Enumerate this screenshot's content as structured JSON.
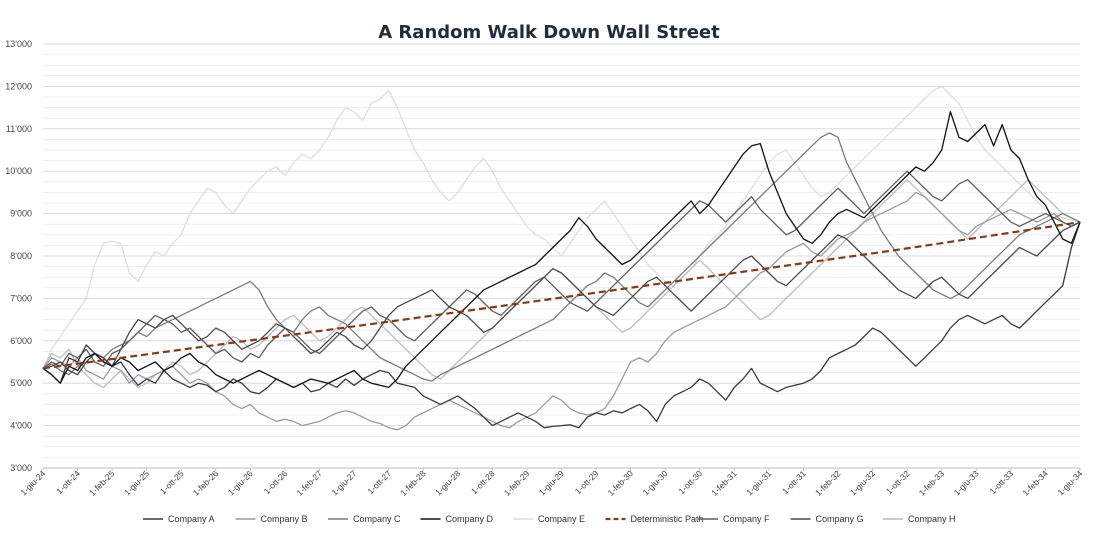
{
  "chart_data": {
    "type": "line",
    "title": "A Random Walk Down Wall Street",
    "xlabel": "",
    "ylabel": "",
    "ylim": [
      3000,
      13000
    ],
    "y_ticks": [
      {
        "value": 3000,
        "label": "3'000"
      },
      {
        "value": 4000,
        "label": "4'000"
      },
      {
        "value": 5000,
        "label": "5'000"
      },
      {
        "value": 6000,
        "label": "6'000"
      },
      {
        "value": 7000,
        "label": "7'000"
      },
      {
        "value": 8000,
        "label": "8'000"
      },
      {
        "value": 9000,
        "label": "9'000"
      },
      {
        "value": 10000,
        "label": "10'000"
      },
      {
        "value": 11000,
        "label": "11'000"
      },
      {
        "value": 12000,
        "label": "12'000"
      },
      {
        "value": 13000,
        "label": "13'000"
      }
    ],
    "grid": true,
    "legend_position": "bottom",
    "x_start": "1-giu-24",
    "x_end": "1-giu-34",
    "x_ticks": [
      "1-giu-24",
      "1-ott-24",
      "1-feb-25",
      "1-giu-25",
      "1-ott-25",
      "1-feb-26",
      "1-giu-26",
      "1-ott-26",
      "1-feb-27",
      "1-giu-27",
      "1-ott-27",
      "1-feb-28",
      "1-giu-28",
      "1-ott-28",
      "1-feb-29",
      "1-giu-29",
      "1-ott-29",
      "1-feb-30",
      "1-giu-30",
      "1-ott-30",
      "1-feb-31",
      "1-giu-31",
      "1-ott-31",
      "1-feb-32",
      "1-giu-32",
      "1-ott-32",
      "1-feb-33",
      "1-giu-33",
      "1-ott-33",
      "1-feb-34",
      "1-giu-34"
    ],
    "series": [
      {
        "name": "Company A",
        "color": "#3a3a3a",
        "dash": false,
        "values": [
          5350,
          5200,
          5000,
          5600,
          5500,
          5900,
          5700,
          5600,
          5400,
          5500,
          5200,
          4950,
          5100,
          5000,
          5300,
          5100,
          5000,
          4900,
          5000,
          4950,
          4800,
          4900,
          5100,
          5000,
          4800,
          4750,
          4900,
          5100,
          5000,
          4900,
          5000,
          4800,
          4850,
          5000,
          4900,
          5100,
          4950,
          5100,
          5200,
          5300,
          5250,
          5000,
          4950,
          4900,
          4700,
          4600,
          4500,
          4600,
          4700,
          4550,
          4400,
          4200,
          4000,
          4100,
          4200,
          4300,
          4200,
          4100,
          3950,
          3980,
          4000,
          4020,
          3950,
          4200,
          4300,
          4250,
          4350,
          4300,
          4400,
          4500,
          4350,
          4100,
          4500,
          4700,
          4800,
          4900,
          5100,
          5000,
          4800,
          4600,
          4900,
          5100,
          5350,
          5000,
          4900,
          4800,
          4900,
          4950,
          5000,
          5100,
          5300,
          5600,
          5700,
          5800,
          5900,
          6100,
          6300,
          6200,
          6000,
          5800,
          5600,
          5400,
          5600,
          5800,
          6000,
          6300,
          6500,
          6600,
          6500,
          6400,
          6500,
          6600,
          6400,
          6300,
          6500,
          6700,
          6900,
          7100,
          7300,
          8200,
          8800
        ]
      },
      {
        "name": "Company B",
        "color": "#9b9b9b",
        "dash": false,
        "values": [
          5350,
          5600,
          5500,
          5400,
          5600,
          5300,
          5200,
          5100,
          5400,
          5300,
          5000,
          5200,
          5100,
          5200,
          5300,
          5400,
          5200,
          5000,
          5100,
          5000,
          4800,
          4700,
          4500,
          4400,
          4500,
          4300,
          4200,
          4100,
          4150,
          4100,
          4000,
          4050,
          4100,
          4200,
          4300,
          4350,
          4300,
          4200,
          4100,
          4050,
          3950,
          3900,
          4000,
          4200,
          4300,
          4400,
          4500,
          4600,
          4500,
          4400,
          4300,
          4200,
          4100,
          4000,
          3950,
          4100,
          4200,
          4300,
          4500,
          4700,
          4600,
          4400,
          4300,
          4250,
          4300,
          4400,
          4700,
          5100,
          5500,
          5600,
          5500,
          5700,
          6000,
          6200,
          6300,
          6400,
          6500,
          6600,
          6700,
          6800,
          7000,
          7200,
          7400,
          7600,
          7700,
          7900,
          8100,
          8200,
          8300,
          8100,
          8000,
          8200,
          8400,
          8500,
          8600,
          8800,
          8900,
          9000,
          9100,
          9200,
          9300,
          9500,
          9400,
          9200,
          9000,
          8800,
          8600,
          8500,
          8700,
          8800,
          8900,
          9000,
          9100,
          9000,
          8900,
          8800,
          8900,
          9000,
          8800,
          8700,
          8800
        ]
      },
      {
        "name": "Company C",
        "color": "#7b7b7b",
        "dash": false,
        "values": [
          5350,
          5450,
          5300,
          5200,
          5400,
          5500,
          5700,
          5600,
          5800,
          5900,
          6000,
          6200,
          6100,
          6300,
          6400,
          6500,
          6600,
          6700,
          6800,
          6900,
          7000,
          7100,
          7200,
          7300,
          7400,
          7200,
          6800,
          6500,
          6300,
          6200,
          6500,
          6700,
          6800,
          6600,
          6500,
          6400,
          6200,
          6000,
          5800,
          5600,
          5500,
          5400,
          5300,
          5200,
          5100,
          5050,
          5200,
          5300,
          5400,
          5500,
          5600,
          5700,
          5800,
          5900,
          6000,
          6100,
          6200,
          6300,
          6400,
          6500,
          6700,
          6900,
          7100,
          7300,
          7400,
          7600,
          7500,
          7300,
          7100,
          6900,
          6800,
          7000,
          7200,
          7400,
          7600,
          7800,
          8000,
          8200,
          8400,
          8600,
          8800,
          9000,
          9200,
          9400,
          9600,
          9800,
          10000,
          10200,
          10400,
          10600,
          10800,
          10900,
          10800,
          10200,
          9800,
          9400,
          9000,
          8600,
          8300,
          8000,
          7800,
          7600,
          7400,
          7200,
          7100,
          7000,
          7100,
          7300,
          7500,
          7700,
          7900,
          8100,
          8300,
          8500,
          8600,
          8700,
          8800,
          8900,
          9000,
          8900,
          8800
        ]
      },
      {
        "name": "Company D",
        "color": "#111111",
        "dash": false,
        "values": [
          5350,
          5200,
          5000,
          5400,
          5300,
          5600,
          5700,
          5500,
          5400,
          5600,
          5500,
          5300,
          5400,
          5500,
          5300,
          5400,
          5600,
          5700,
          5500,
          5400,
          5200,
          5100,
          5000,
          5100,
          5200,
          5300,
          5200,
          5100,
          5000,
          4900,
          5000,
          5100,
          5050,
          5000,
          5100,
          5200,
          5300,
          5100,
          5000,
          4950,
          4900,
          5100,
          5400,
          5600,
          5800,
          6000,
          6200,
          6400,
          6600,
          6800,
          7000,
          7200,
          7300,
          7400,
          7500,
          7600,
          7700,
          7800,
          8000,
          8200,
          8400,
          8600,
          8900,
          8700,
          8400,
          8200,
          8000,
          7800,
          7900,
          8100,
          8300,
          8500,
          8700,
          8900,
          9100,
          9300,
          9000,
          9200,
          9500,
          9800,
          10100,
          10400,
          10600,
          10650,
          10000,
          9500,
          9000,
          8700,
          8400,
          8300,
          8500,
          8800,
          9000,
          9100,
          9000,
          8900,
          9100,
          9300,
          9500,
          9700,
          9900,
          10100,
          10000,
          10200,
          10500,
          11400,
          10800,
          10700,
          10900,
          11100,
          10600,
          11100,
          10500,
          10300,
          9800,
          9400,
          9200,
          8800,
          8400,
          8300,
          8800
        ]
      },
      {
        "name": "Company E",
        "color": "#dedede",
        "dash": false,
        "values": [
          5350,
          5800,
          6100,
          6400,
          6700,
          7000,
          7800,
          8300,
          8350,
          8300,
          7600,
          7400,
          7800,
          8100,
          8000,
          8300,
          8500,
          9000,
          9300,
          9600,
          9500,
          9200,
          9000,
          9300,
          9600,
          9800,
          10000,
          10100,
          9900,
          10200,
          10400,
          10300,
          10500,
          10800,
          11200,
          11500,
          11400,
          11200,
          11600,
          11700,
          11900,
          11500,
          11000,
          10500,
          10200,
          9800,
          9500,
          9300,
          9500,
          9800,
          10100,
          10300,
          10000,
          9600,
          9300,
          9000,
          8700,
          8500,
          8400,
          8200,
          8000,
          8300,
          8600,
          8900,
          9100,
          9300,
          9000,
          8700,
          8400,
          8100,
          7800,
          7600,
          7400,
          7300,
          7500,
          7700,
          8000,
          8300,
          8500,
          8700,
          9000,
          9300,
          9600,
          9900,
          10200,
          10400,
          10500,
          10200,
          9900,
          9600,
          9400,
          9500,
          9700,
          9900,
          10100,
          10300,
          10500,
          10700,
          10900,
          11100,
          11300,
          11500,
          11700,
          11900,
          12000,
          11800,
          11600,
          11200,
          10800,
          10500,
          10300,
          10100,
          9900,
          9700,
          9500,
          9300,
          9100,
          9000,
          8900,
          8850,
          8800
        ]
      },
      {
        "name": "Deterministic Path",
        "color": "#8b3a0e",
        "dash": true,
        "values": [
          5350,
          5900,
          6450,
          7020,
          7600,
          8180,
          8800
        ]
      },
      {
        "name": "Company F",
        "color": "#5e5e5e",
        "dash": false,
        "values": [
          5350,
          5500,
          5400,
          5700,
          5600,
          5800,
          5500,
          5400,
          5700,
          5800,
          6000,
          6200,
          6400,
          6600,
          6500,
          6400,
          6200,
          6300,
          6100,
          5900,
          5700,
          5800,
          5600,
          5500,
          5700,
          5600,
          5900,
          6100,
          6300,
          6200,
          6000,
          5800,
          5700,
          5900,
          6100,
          6300,
          6500,
          6700,
          6800,
          6600,
          6500,
          6300,
          6100,
          6000,
          6200,
          6400,
          6600,
          6800,
          7000,
          7200,
          7100,
          6900,
          6700,
          6600,
          6800,
          7000,
          7200,
          7400,
          7500,
          7300,
          7100,
          6900,
          6800,
          6700,
          6900,
          7100,
          7300,
          7500,
          7700,
          7900,
          8100,
          8300,
          8500,
          8700,
          8900,
          9100,
          9300,
          9200,
          9000,
          8800,
          9000,
          9200,
          9400,
          9100,
          8900,
          8700,
          8500,
          8600,
          8800,
          9000,
          9200,
          9400,
          9600,
          9400,
          9200,
          9000,
          9200,
          9400,
          9600,
          9800,
          10000,
          9800,
          9600,
          9400,
          9300,
          9500,
          9700,
          9800,
          9600,
          9400,
          9200,
          9000,
          8800,
          8700,
          8800,
          8900,
          9000,
          8900,
          8800,
          8700,
          8800
        ]
      },
      {
        "name": "Company G",
        "color": "#4a4a4a",
        "dash": false,
        "values": [
          5350,
          5400,
          5500,
          5300,
          5200,
          5500,
          5700,
          5600,
          5400,
          5800,
          6200,
          6500,
          6400,
          6300,
          6500,
          6600,
          6400,
          6200,
          6000,
          6100,
          6300,
          6200,
          6000,
          5800,
          5900,
          6000,
          6200,
          6400,
          6300,
          6100,
          5900,
          5700,
          5800,
          6000,
          6200,
          6100,
          5900,
          5800,
          6000,
          6300,
          6600,
          6800,
          6900,
          7000,
          7100,
          7200,
          7000,
          6800,
          6700,
          6600,
          6400,
          6200,
          6300,
          6500,
          6700,
          6900,
          7100,
          7300,
          7500,
          7700,
          7600,
          7400,
          7200,
          7000,
          6800,
          6700,
          6600,
          6800,
          7000,
          7200,
          7400,
          7500,
          7300,
          7100,
          6900,
          6700,
          6900,
          7100,
          7300,
          7500,
          7700,
          7900,
          8000,
          7800,
          7600,
          7400,
          7300,
          7500,
          7700,
          7900,
          8100,
          8300,
          8500,
          8400,
          8200,
          8000,
          7800,
          7600,
          7400,
          7200,
          7100,
          7000,
          7200,
          7400,
          7500,
          7300,
          7100,
          7000,
          7200,
          7400,
          7600,
          7800,
          8000,
          8200,
          8100,
          8000,
          8200,
          8400,
          8600,
          8700,
          8800
        ]
      },
      {
        "name": "Company H",
        "color": "#bcbcbc",
        "dash": false,
        "values": [
          5350,
          5700,
          5600,
          5800,
          5400,
          5200,
          5000,
          4900,
          5100,
          5300,
          5100,
          4900,
          5000,
          5200,
          5300,
          5500,
          5400,
          5200,
          5300,
          5500,
          5700,
          5900,
          6100,
          6000,
          5800,
          5900,
          6100,
          6300,
          6500,
          6600,
          6400,
          6200,
          6000,
          6100,
          6300,
          6500,
          6700,
          6800,
          6600,
          6400,
          6200,
          6000,
          5800,
          5600,
          5400,
          5200,
          5100,
          5300,
          5500,
          5700,
          5900,
          6100,
          6300,
          6500,
          6700,
          6900,
          7100,
          7300,
          7500,
          7700,
          7600,
          7400,
          7200,
          7000,
          6800,
          6600,
          6400,
          6200,
          6300,
          6500,
          6700,
          6900,
          7100,
          7300,
          7500,
          7700,
          7900,
          7700,
          7500,
          7300,
          7100,
          6900,
          6700,
          6500,
          6600,
          6800,
          7000,
          7200,
          7400,
          7600,
          7800,
          8000,
          8200,
          8400,
          8600,
          8800,
          9000,
          9200,
          9400,
          9600,
          9800,
          9600,
          9400,
          9200,
          9000,
          8800,
          8600,
          8400,
          8600,
          8800,
          9000,
          9200,
          9400,
          9600,
          9800,
          9600,
          9400,
          9200,
          9000,
          8900,
          8800
        ]
      }
    ]
  }
}
